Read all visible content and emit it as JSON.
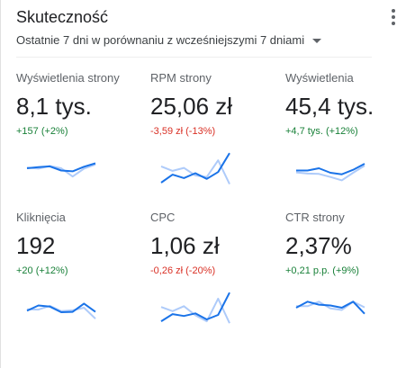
{
  "card": {
    "title": "Skuteczność",
    "menu_icon": "more-vert-icon",
    "date_range": "Ostatnie 7 dni w porównaniu z wcześniejszymi 7 dniami",
    "dropdown_icon": "arrow-drop-down-icon"
  },
  "colors": {
    "current": "#1a73e8",
    "previous": "#aecbfa",
    "positive": "#188038",
    "negative": "#d93025"
  },
  "metrics": [
    {
      "label": "Wyświetlenia strony",
      "value": "8,1 tys.",
      "delta": "+157 (+2%)",
      "trend": "up",
      "sparkline": {
        "current": [
          5.0,
          5.3,
          5.5,
          4.4,
          4.2,
          5.4,
          6.3
        ],
        "previous": [
          5.2,
          4.9,
          5.6,
          5.0,
          2.8,
          4.9,
          6.0
        ]
      }
    },
    {
      "label": "RPM strony",
      "value": "25,06 zł",
      "delta": "-3,59 zł (-13%)",
      "trend": "down",
      "sparkline": {
        "current": [
          1.2,
          3.3,
          2.4,
          3.7,
          2.2,
          4.0,
          9.0
        ],
        "previous": [
          5.5,
          4.3,
          5.1,
          3.1,
          2.7,
          7.1,
          0.8
        ]
      }
    },
    {
      "label": "Wyświetlenia",
      "value": "45,4 tys.",
      "delta": "+4,7 tys. (+12%)",
      "trend": "up",
      "sparkline": {
        "current": [
          4.4,
          4.4,
          5.0,
          3.8,
          3.4,
          4.6,
          6.2
        ],
        "previous": [
          3.9,
          3.6,
          3.5,
          2.7,
          1.8,
          3.8,
          5.7
        ]
      }
    },
    {
      "label": "Kliknięcia",
      "value": "192",
      "delta": "+20 (+12%)",
      "trend": "up",
      "sparkline": {
        "current": [
          4.2,
          5.6,
          5.3,
          3.8,
          3.9,
          6.1,
          3.9
        ],
        "previous": [
          4.6,
          4.5,
          5.5,
          4.1,
          4.3,
          5.0,
          2.1
        ]
      }
    },
    {
      "label": "CPC",
      "value": "1,06 zł",
      "delta": "-0,26 zł (-20%)",
      "trend": "down",
      "sparkline": {
        "current": [
          1.4,
          3.3,
          2.8,
          3.5,
          1.9,
          3.1,
          9.0
        ],
        "previous": [
          5.2,
          4.1,
          5.4,
          3.0,
          1.4,
          7.4,
          0.9
        ]
      }
    },
    {
      "label": "CTR strony",
      "value": "2,37%",
      "delta": "+0,21 p.p. (+9%)",
      "trend": "up",
      "sparkline": {
        "current": [
          5.0,
          6.6,
          5.8,
          5.6,
          5.0,
          6.6,
          3.4
        ],
        "previous": [
          5.4,
          5.4,
          6.6,
          4.8,
          4.4,
          6.6,
          5.1
        ]
      }
    }
  ]
}
